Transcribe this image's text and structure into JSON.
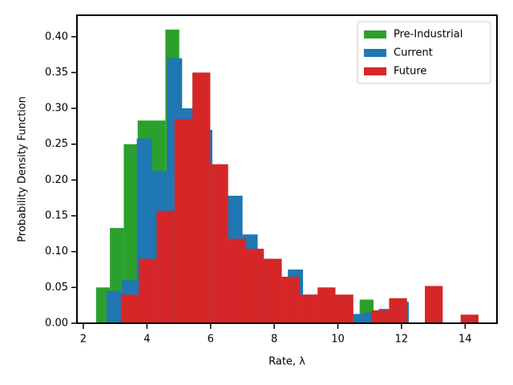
{
  "chart_data": {
    "type": "histogram",
    "xlabel": "Rate, λ",
    "ylabel": "Probability Density Function",
    "xlim": [
      1.8,
      15
    ],
    "ylim": [
      0,
      0.43
    ],
    "xticks": [
      2,
      4,
      6,
      8,
      10,
      12,
      14
    ],
    "yticks": [
      {
        "value": 0,
        "label": "0.00"
      },
      {
        "value": 0.05,
        "label": "0.05"
      },
      {
        "value": 0.1,
        "label": "0.10"
      },
      {
        "value": 0.15,
        "label": "0.15"
      },
      {
        "value": 0.2,
        "label": "0.20"
      },
      {
        "value": 0.25,
        "label": "0.25"
      },
      {
        "value": 0.3,
        "label": "0.30"
      },
      {
        "value": 0.35,
        "label": "0.35"
      },
      {
        "value": 0.4,
        "label": "0.40"
      }
    ],
    "legend": "upper right",
    "series": [
      {
        "name": "Pre-Industrial",
        "color": "#2ca02c",
        "bins": [
          2.4,
          2.836,
          3.272,
          3.708,
          4.144,
          4.58,
          5.016,
          5.452,
          5.888,
          6.324,
          6.76,
          7.196,
          7.632,
          8.068,
          8.504,
          8.94,
          9.376,
          9.812,
          10.248,
          10.684,
          11.12
        ],
        "values": [
          0.05,
          0.133,
          0.25,
          0.283,
          0.283,
          0.41,
          0.3,
          0.27,
          0.2,
          0.15,
          0.12,
          0.1,
          0.08,
          0.06,
          0.04,
          0.03,
          0.02,
          0.015,
          0.01,
          0.033
        ]
      },
      {
        "name": "Current",
        "color": "#1f77b4",
        "bins": [
          2.73,
          3.205,
          3.68,
          4.155,
          4.63,
          5.105,
          5.58,
          6.055,
          6.53,
          7.005,
          7.48,
          7.955,
          8.43,
          8.905,
          9.38,
          9.855,
          10.33,
          10.805,
          11.28,
          11.755,
          12.23
        ],
        "values": [
          0.045,
          0.06,
          0.258,
          0.213,
          0.37,
          0.3,
          0.27,
          0.21,
          0.178,
          0.124,
          0.09,
          0.06,
          0.075,
          0.04,
          0.03,
          0.02,
          0.013,
          0.015,
          0.02,
          0.03
        ]
      },
      {
        "name": "Future",
        "color": "#d62728",
        "bins": [
          3.18,
          3.742,
          4.304,
          4.866,
          5.428,
          5.99,
          6.552,
          7.114,
          7.676,
          8.238,
          8.8,
          9.362,
          9.924,
          10.486,
          11.048,
          11.61,
          12.172,
          12.734,
          13.296,
          13.858,
          14.42
        ],
        "values": [
          0.04,
          0.09,
          0.157,
          0.285,
          0.35,
          0.222,
          0.118,
          0.104,
          0.09,
          0.065,
          0.04,
          0.05,
          0.04,
          0,
          0.018,
          0.035,
          0,
          0.052,
          0,
          0.012
        ]
      }
    ]
  }
}
